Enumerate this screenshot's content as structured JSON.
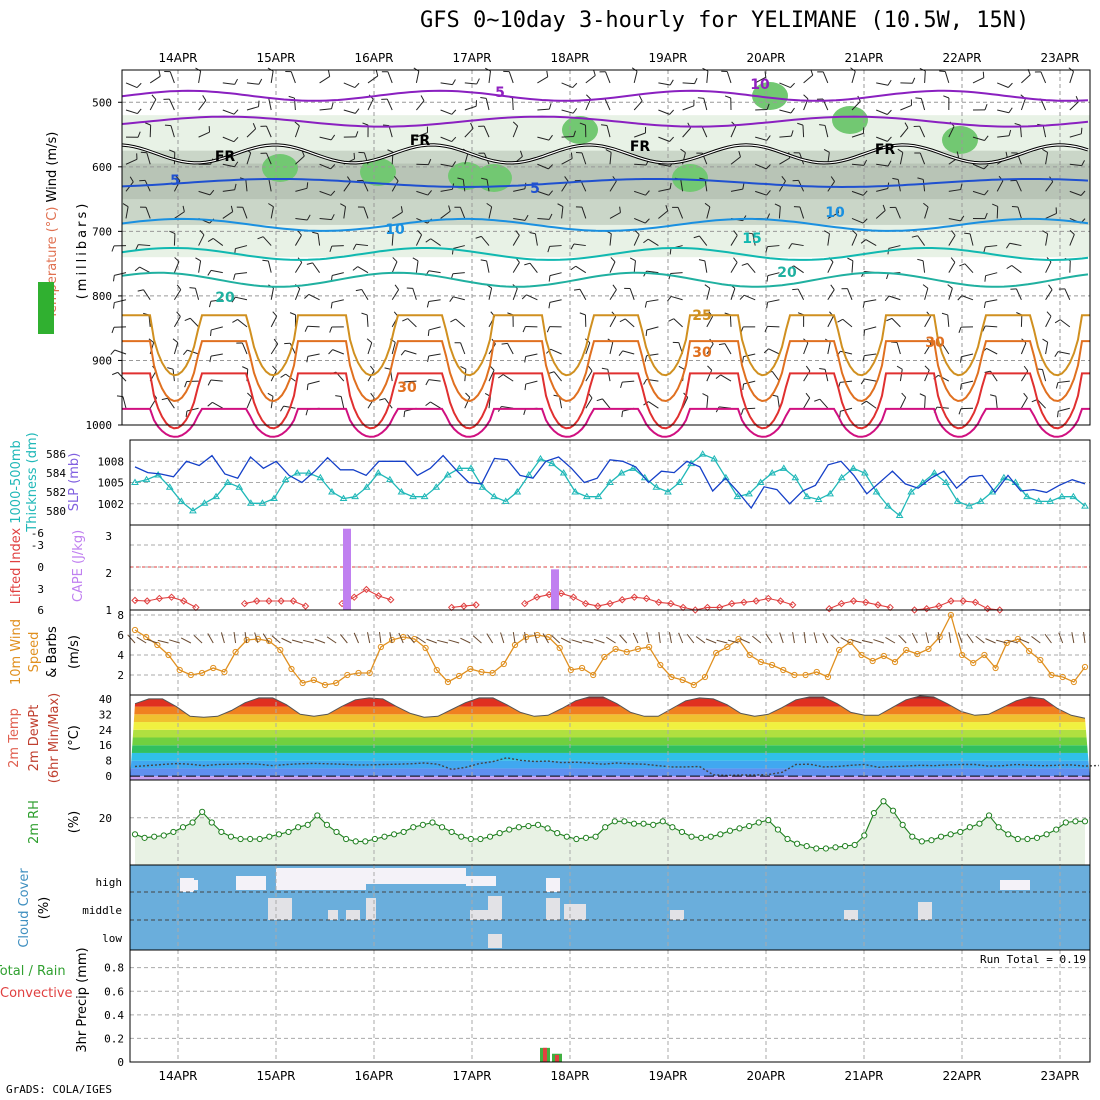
{
  "title": "GFS 0~10day 3-hourly for YELIMANE (10.5W, 15N)",
  "footer": "GrADS: COLA/IGES",
  "dates": [
    "14APR",
    "15APR",
    "16APR",
    "17APR",
    "18APR",
    "19APR",
    "20APR",
    "21APR",
    "22APR",
    "23APR"
  ],
  "chart_data": [
    {
      "type": "contour",
      "name": "upper-air",
      "ylabel_parts": [
        "RH (%)",
        "Temperature (°C)",
        "Wind (m/s)"
      ],
      "yaxis_title": "(millibars)",
      "yticks": [
        "500",
        "600",
        "700",
        "800",
        "900",
        "1000"
      ],
      "ylim": [
        450,
        1000
      ],
      "contour_labels": [
        {
          "text": "5",
          "color": "#9020c0"
        },
        {
          "text": "10",
          "color": "#9020c0"
        },
        {
          "text": "FR",
          "color": "#000000"
        },
        {
          "text": "FR",
          "color": "#000000"
        },
        {
          "text": "FR",
          "color": "#000000"
        },
        {
          "text": "FR",
          "color": "#000000"
        },
        {
          "text": "5",
          "color": "#1f50d0"
        },
        {
          "text": "5",
          "color": "#1f50d0"
        },
        {
          "text": "10",
          "color": "#1a90e0"
        },
        {
          "text": "10",
          "color": "#1a90e0"
        },
        {
          "text": "15",
          "color": "#10b8b0"
        },
        {
          "text": "20",
          "color": "#20b0a0"
        },
        {
          "text": "20",
          "color": "#20b0a0"
        },
        {
          "text": "25",
          "color": "#d09020"
        },
        {
          "text": "30",
          "color": "#e07020"
        },
        {
          "text": "30",
          "color": "#e07020"
        },
        {
          "text": "30",
          "color": "#e07020"
        }
      ]
    },
    {
      "type": "line",
      "name": "slp-thickness",
      "ylabel_parts": [
        "1000-500mb",
        "Thickness (dm)",
        "SLP (mb)"
      ],
      "left_ticks": [
        "586",
        "584",
        "582",
        "580"
      ],
      "right_ticks": [
        "1008",
        "1005",
        "1002"
      ],
      "series": [
        {
          "name": "SLP (mb)",
          "color": "#1540c8",
          "values": [
            1007.2,
            1006.4,
            1006.2,
            1005.8,
            1008.0,
            1007.4,
            1008.8,
            1006.2,
            1005.6,
            1008.6,
            1007.0,
            1008.0,
            1006.0,
            1005.0,
            1006.6,
            1008.5,
            1006.8,
            1006.8,
            1006.0,
            1008.0,
            1008.0,
            1008.0,
            1006.0,
            1007.0,
            1008.8,
            1006.8,
            1005.0,
            1004.8,
            1008.4,
            1008.2,
            1006.0,
            1005.6,
            1008.0,
            1008.6,
            1007.0,
            1005.0,
            1005.6,
            1008.2,
            1008.0,
            1007.2,
            1005.0,
            1006.6,
            1006.4,
            1008.0,
            1007.2,
            1003.8,
            1005.6,
            1003.6,
            1001.4,
            1004.4,
            1004.0,
            1002.0,
            1003.8,
            1004.6,
            1007.5,
            1008.0,
            1006.0,
            1003.4,
            1005.0,
            1006.6,
            1004.8,
            1004.2,
            1005.6,
            1006.6,
            1004.2,
            1005.8,
            1006.0,
            1003.6,
            1006.0,
            1003.8,
            1004.0,
            1003.6,
            1004.6,
            1005.4,
            1004.8
          ]
        },
        {
          "name": "1000-500mb Thickness (dm)",
          "color": "#20b8b8",
          "values": [
            583.0,
            583.3,
            583.8,
            582.5,
            581.0,
            580.0,
            580.8,
            581.5,
            583.0,
            582.5,
            580.8,
            580.8,
            581.3,
            583.3,
            584.0,
            584.0,
            583.5,
            582.0,
            581.3,
            581.5,
            582.5,
            584.0,
            583.3,
            582.0,
            581.5,
            581.5,
            582.5,
            583.8,
            584.5,
            584.5,
            582.5,
            581.5,
            581.0,
            582.0,
            583.8,
            585.5,
            585.0,
            584.0,
            582.0,
            581.5,
            581.5,
            583.0,
            584.0,
            584.5,
            583.5,
            582.5,
            582.0,
            583.0,
            585.0,
            586.0,
            585.5,
            583.5,
            581.5,
            581.8,
            583.0,
            584.0,
            584.5,
            583.5,
            581.5,
            581.2,
            581.8,
            583.5,
            584.5,
            584.0,
            582.0,
            580.5,
            579.5,
            582.0,
            583.0,
            584.0,
            583.0,
            581.0,
            580.5,
            581.0,
            582.0,
            583.5,
            583.0,
            581.5,
            581.0,
            581.0,
            581.5,
            581.5,
            580.5
          ]
        }
      ]
    },
    {
      "type": "bar+line",
      "name": "lifted-cape",
      "ylabel_parts": [
        "Lifted Index",
        "CAPE (J/kg)"
      ],
      "left_ticks": [
        "-6",
        "-3",
        "0",
        "3",
        "6"
      ],
      "right_ticks": [
        "3",
        "2",
        "1"
      ],
      "series": [
        {
          "name": "Lifted Index",
          "color": "#e04040",
          "values": [
            4.5,
            4.6,
            4.2,
            4.0,
            4.6,
            5.6,
            6.8,
            7.2,
            6.6,
            5.0,
            4.6,
            4.6,
            4.6,
            4.6,
            5.4,
            6.6,
            6.2,
            5.0,
            4.0,
            2.8,
            3.8,
            4.4,
            6.4,
            6.8,
            6.2,
            6.4,
            5.6,
            5.4,
            5.2,
            6.4,
            7.0,
            6.4,
            5.0,
            4.0,
            3.6,
            3.4,
            4.0,
            5.0,
            5.4,
            5.0,
            4.4,
            4.0,
            4.2,
            4.8,
            5.0,
            5.6,
            6.0,
            5.6,
            5.6,
            5.0,
            4.8,
            4.6,
            4.2,
            4.6,
            5.2,
            6.2,
            6.2,
            5.8,
            5.0,
            4.6,
            4.8,
            5.2,
            5.6,
            6.6,
            6.0,
            5.8,
            5.4,
            4.6,
            4.6,
            4.8,
            5.8,
            6.0
          ]
        },
        {
          "name": "CAPE (J/kg)",
          "color": "#c080f0",
          "values": [
            3.2,
            2.1
          ]
        }
      ],
      "cape_days": [
        "15APR 18Z",
        "17APR 21Z"
      ]
    },
    {
      "type": "line",
      "name": "wind10m",
      "ylabel_parts": [
        "10m Wind",
        "Speed",
        "& Barbs",
        "(m/s)"
      ],
      "left_ticks": [
        "8",
        "6",
        "4",
        "2"
      ],
      "ylim": [
        0,
        8.5
      ],
      "series": [
        {
          "name": "10m Wind Speed",
          "color": "#e09020",
          "values": [
            6.5,
            5.8,
            5.0,
            4.0,
            2.5,
            2.0,
            2.2,
            2.7,
            2.3,
            4.3,
            5.5,
            5.6,
            5.4,
            4.5,
            2.6,
            1.2,
            1.5,
            1.0,
            1.2,
            2.0,
            2.2,
            2.2,
            4.8,
            5.5,
            5.8,
            5.6,
            4.7,
            2.5,
            1.3,
            1.9,
            2.6,
            2.3,
            2.2,
            3.1,
            5.0,
            5.8,
            6.0,
            5.8,
            4.7,
            2.5,
            2.7,
            2.0,
            3.8,
            4.6,
            4.3,
            4.6,
            4.8,
            3.0,
            1.8,
            1.5,
            1.0,
            1.8,
            4.2,
            4.8,
            5.6,
            4.0,
            3.3,
            3.0,
            2.5,
            2.0,
            2.0,
            2.3,
            1.8,
            4.5,
            5.3,
            4.0,
            3.4,
            3.9,
            3.3,
            4.5,
            4.1,
            4.6,
            5.8,
            8.0,
            4.0,
            3.2,
            4.0,
            2.7,
            5.2,
            5.6,
            4.4,
            3.5,
            2.0,
            1.8,
            1.3,
            2.8
          ]
        }
      ]
    },
    {
      "type": "area",
      "name": "temp2m",
      "ylabel_parts": [
        "2m Temp",
        "2m DewPt",
        "(6hr Min/Max)",
        "(°C)"
      ],
      "left_ticks": [
        "40",
        "32",
        "24",
        "16",
        "8",
        "0"
      ],
      "ylim": [
        -2,
        42
      ],
      "series": [
        {
          "name": "2m Temp",
          "values": [
            37.5,
            40,
            40,
            36,
            31,
            30.5,
            31,
            34,
            38,
            40.5,
            40.5,
            37,
            32,
            31,
            32,
            36,
            39.5,
            40.5,
            40,
            36,
            32.5,
            30.5,
            31,
            34.5,
            38,
            40.5,
            40.5,
            37,
            33,
            31,
            31.5,
            35,
            39,
            41,
            41,
            37.5,
            33,
            31,
            31,
            35,
            39,
            40.5,
            40,
            37,
            32.5,
            31,
            32,
            35.5,
            39.5,
            41,
            41,
            37.5,
            33,
            31.5,
            31.5,
            35.5,
            39.5,
            41.5,
            41,
            37.5,
            33.5,
            31.5,
            32,
            35.5,
            39,
            41,
            40,
            35,
            31.5,
            30
          ]
        },
        {
          "name": "2m DewPt",
          "values": [
            5,
            5.5,
            6,
            6.5,
            6.2,
            5.4,
            6,
            6.2,
            6.5,
            6.2,
            5.4,
            6,
            6.4,
            6.6,
            6.4,
            6.2,
            5.8,
            5.8,
            6,
            6.2,
            6.4,
            6.8,
            6.2,
            3.5,
            4.5,
            6.5,
            7.5,
            9.5,
            8.2,
            7.6,
            7.8,
            7,
            7.2,
            6.8,
            6.2,
            6.8,
            6.4,
            6.2,
            5.4,
            4.8,
            4.8,
            5,
            0.7,
            0.4,
            0.6,
            0.6,
            0.8,
            2,
            6,
            6.2,
            4.8,
            5,
            5.6,
            6,
            4.6,
            5,
            5.2,
            5.6,
            5.4,
            5.8,
            6,
            6,
            5.2,
            5.4,
            6,
            5.6,
            5.4,
            5.6,
            5.8,
            5.2,
            5.5
          ]
        }
      ]
    },
    {
      "type": "area",
      "name": "rh2m",
      "ylabel_parts": [
        "2m RH",
        "(%)"
      ],
      "left_ticks": [
        "20"
      ],
      "ylim": [
        0,
        36
      ],
      "series": [
        {
          "name": "2m RH",
          "color": "#208020",
          "values": [
            13,
            11.5,
            12,
            12.5,
            14,
            16,
            18,
            22.5,
            18,
            14,
            12,
            11,
            11,
            11,
            12,
            13,
            14,
            16,
            17,
            21,
            17,
            14,
            11,
            10,
            10,
            11,
            12,
            13,
            14,
            16,
            17,
            18,
            16,
            14,
            12,
            11,
            11,
            12,
            13.5,
            15,
            16,
            16.5,
            17,
            15.5,
            13.5,
            12,
            11,
            11.5,
            12,
            16,
            18.5,
            18.5,
            17.5,
            17.5,
            17,
            18.5,
            16,
            14,
            12,
            11.5,
            12,
            13,
            14.5,
            15.5,
            16.5,
            18,
            19,
            15,
            11,
            9,
            8,
            7,
            7,
            7.5,
            8,
            8.5,
            12.5,
            22,
            27,
            23,
            17,
            12,
            10,
            10.5,
            12,
            13,
            14,
            16,
            17.5,
            21,
            16,
            13,
            11,
            11,
            11.5,
            13,
            15,
            18,
            18.5,
            18.5
          ]
        }
      ]
    },
    {
      "type": "heatmap",
      "name": "cloud-cover",
      "ylabel_parts": [
        "Cloud Cover",
        "(%)"
      ],
      "row_labels": [
        "high",
        "middle",
        "low"
      ]
    },
    {
      "type": "bar",
      "name": "precip",
      "ylabel_parts": [
        "Total / Rain",
        "Convective",
        "3hr Precip (mm)"
      ],
      "left_ticks": [
        "0.8",
        "0.6",
        "0.4",
        "0.2",
        "0"
      ],
      "ylim": [
        0,
        0.95
      ],
      "run_total": "Run Total = 0.19",
      "series": [
        {
          "name": "Total",
          "color": "#40b040",
          "values": [
            0.12,
            0.07
          ]
        },
        {
          "name": "Convective",
          "color": "#e04040",
          "values": [
            0.12,
            0.06
          ]
        }
      ]
    }
  ]
}
